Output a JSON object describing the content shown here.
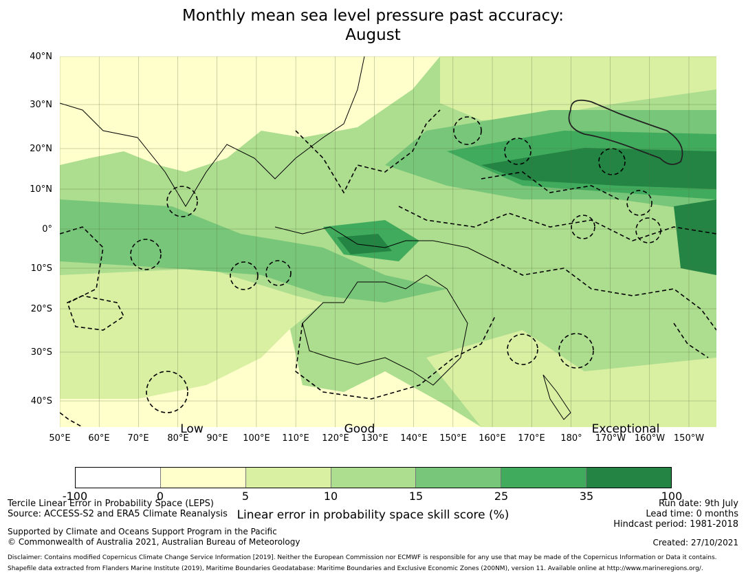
{
  "title": {
    "line1": "Monthly mean sea level pressure past accuracy:",
    "line2": "August"
  },
  "map": {
    "lat_labels": [
      "40°N",
      "30°N",
      "20°N",
      "10°N",
      "0°",
      "10°S",
      "20°S",
      "30°S",
      "40°S"
    ],
    "lon_labels": [
      "50°E",
      "60°E",
      "70°E",
      "80°E",
      "90°E",
      "100°E",
      "110°E",
      "120°E",
      "130°E",
      "140°E",
      "150°E",
      "160°E",
      "170°E",
      "180°",
      "170°W",
      "160°W",
      "150°W"
    ],
    "skill_labels": [
      "Low",
      "Good",
      "Exceptional"
    ],
    "extent": {
      "lon": [
        50,
        217
      ],
      "lat": [
        -46,
        40
      ]
    },
    "colors": {
      "ocean_base": "#a9dd8f",
      "land_low": "#ffffcc",
      "coast": "#000000"
    }
  },
  "colorbar": {
    "ticks": [
      "-100",
      "0",
      "5",
      "10",
      "15",
      "25",
      "35",
      "100"
    ],
    "colors": [
      "#ffffff",
      "#ffffcc",
      "#d9f0a3",
      "#addd8e",
      "#78c679",
      "#41ab5d",
      "#238443"
    ],
    "label": "Linear error in probability space skill score (%)"
  },
  "footer": {
    "left1": "Tercile Linear Error in Probability Space (LEPS)",
    "left2": "Source: ACCESS-S2 and ERA5 Climate Reanalysis",
    "left3": "Supported by Climate and Oceans Support Program in the Pacific",
    "left4": "© Commonwealth of Australia 2021, Australian Bureau of Meteorology",
    "right1": "Run date: 9th July",
    "right2": "Lead time: 0 months",
    "right3": "Hindcast period: 1981-2018",
    "right4": "Created: 27/10/2021",
    "disclaimer": "Disclaimer: Contains modified Copernicus Climate Change Service Information [2019]. Neither the European Commission nor ECMWF is responsible for any use that may be made of the Copernicus Information or Data it contains.",
    "shapefile": "Shapefile data extracted from Flanders Marine Institute (2019), Maritime Boundaries Geodatabase: Maritime Boundaries and Exclusive Economic Zones (200NM), version 11. Available online at http://www.marineregions.org/."
  }
}
